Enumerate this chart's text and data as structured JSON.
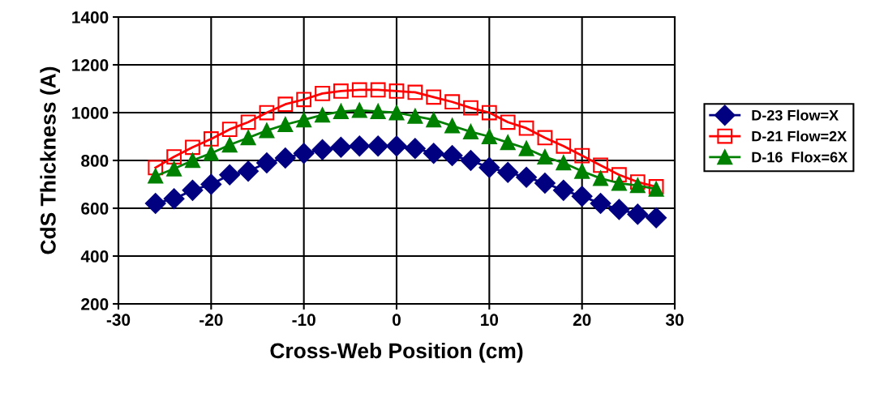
{
  "chart_data": {
    "type": "line",
    "xlabel": "Cross-Web Position (cm)",
    "ylabel": "CdS Thickness (A)",
    "x": [
      -26,
      -24,
      -22,
      -20,
      -18,
      -16,
      -14,
      -12,
      -10,
      -8,
      -6,
      -4,
      -2,
      0,
      2,
      4,
      6,
      8,
      10,
      12,
      14,
      16,
      18,
      20,
      22,
      24,
      26,
      28
    ],
    "series": [
      {
        "name": "D-23 Flow=X",
        "color": "#000080",
        "marker": "diamond",
        "values": [
          620,
          640,
          675,
          700,
          740,
          755,
          790,
          810,
          830,
          845,
          855,
          860,
          860,
          860,
          850,
          830,
          820,
          800,
          770,
          750,
          730,
          705,
          675,
          650,
          620,
          595,
          575,
          560
        ]
      },
      {
        "name": "D-21 Flow=2X",
        "color": "#ff0000",
        "marker": "square",
        "values": [
          770,
          815,
          855,
          890,
          930,
          960,
          1000,
          1035,
          1055,
          1080,
          1090,
          1095,
          1095,
          1090,
          1085,
          1065,
          1045,
          1020,
          1000,
          960,
          935,
          895,
          860,
          820,
          780,
          740,
          710,
          690
        ]
      },
      {
        "name": "D-16  Flox=6X",
        "color": "#008000",
        "marker": "triangle",
        "values": [
          735,
          765,
          800,
          830,
          865,
          895,
          925,
          950,
          970,
          990,
          1005,
          1010,
          1005,
          1000,
          985,
          970,
          945,
          920,
          900,
          875,
          850,
          815,
          790,
          755,
          725,
          705,
          695,
          680
        ]
      }
    ],
    "xlim": [
      -30,
      30
    ],
    "xticks": [
      -30,
      -20,
      -10,
      0,
      10,
      20,
      30
    ],
    "ylim": [
      200,
      1400
    ],
    "yticks": [
      200,
      400,
      600,
      800,
      1000,
      1200,
      1400
    ],
    "grid": true,
    "legend": "right",
    "line_style": "solid"
  }
}
